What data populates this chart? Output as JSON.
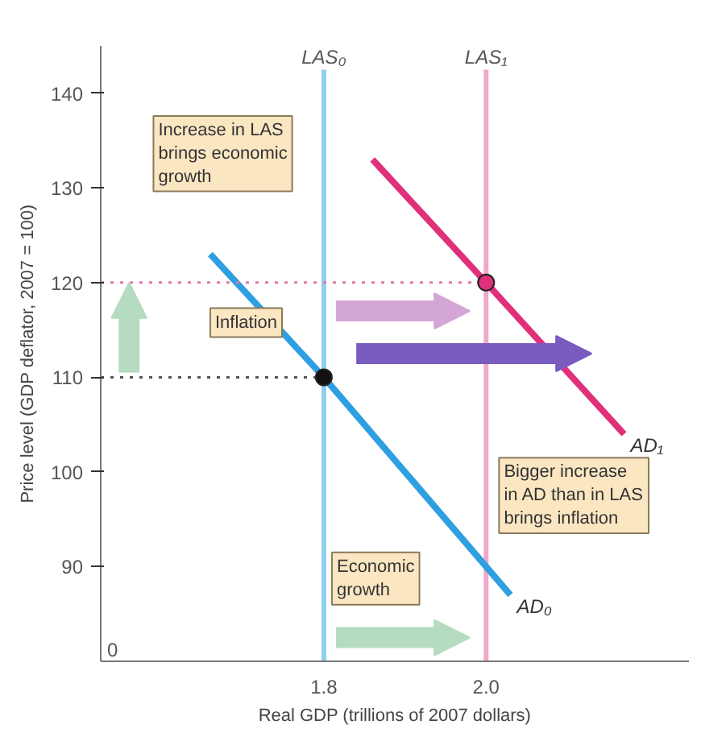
{
  "chart_data": {
    "type": "line",
    "xlabel": "Real GDP (trillions of 2007 dollars)",
    "ylabel": "Price level (GDP deflator, 2007 = 100)",
    "xlim": [
      1.525,
      2.25
    ],
    "ylim": [
      80,
      145
    ],
    "xticks": [
      1.8,
      {
        "value": 2.0,
        "label": "2.0"
      }
    ],
    "yticks": [
      90,
      100,
      110,
      120,
      130,
      140
    ],
    "grid": false,
    "series": [
      {
        "name": "AD₀",
        "color": "#2e9fe0",
        "x": [
          1.66,
          1.8,
          2.03
        ],
        "values": [
          123,
          110,
          87
        ]
      },
      {
        "name": "AD₁",
        "color": "#e0307a",
        "x": [
          1.86,
          2.0,
          2.17
        ],
        "values": [
          133,
          120,
          104
        ]
      },
      {
        "type": "line",
        "color": "#e07aa8",
        "line_style": "dotted",
        "x": [
          1.525,
          2.0
        ],
        "values": [
          120,
          120
        ]
      },
      {
        "type": "line",
        "color": "#555555",
        "line_style": "dotted",
        "x": [
          1.525,
          1.8
        ],
        "values": [
          110,
          110
        ]
      },
      {
        "type": "scatter",
        "marker": "circle",
        "color": "#111111",
        "x": [
          1.8
        ],
        "values": [
          110
        ]
      },
      {
        "type": "scatter",
        "marker": "circle",
        "color": "#e0307a",
        "x": [
          2.0
        ],
        "values": [
          120
        ]
      }
    ],
    "ref_lines": [
      {
        "axis": "x",
        "value": 1.8,
        "label": "LAS₀",
        "color": "#8ecfee"
      },
      {
        "axis": "x",
        "value": 2.0,
        "label": "LAS₁",
        "color": "#f0a8c8"
      }
    ],
    "annotations": [
      "Increase in LAS brings economic growth",
      "Inflation",
      "Bigger increase in AD than in LAS brings inflation",
      "Economic growth",
      "0"
    ]
  }
}
